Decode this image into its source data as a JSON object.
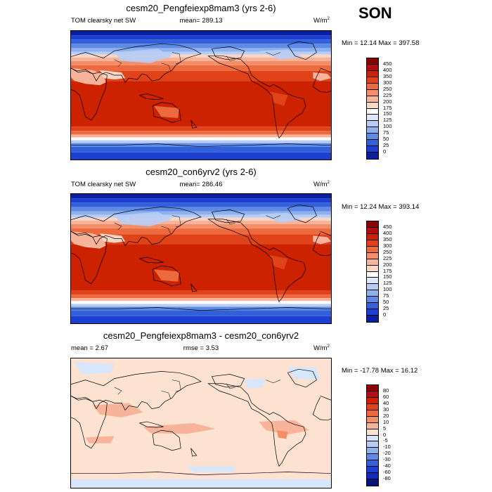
{
  "season": "SON",
  "panels": [
    {
      "title": "cesm20_Pengfeiexp8mam3 (yrs 2-6)",
      "left_label": "TOM clearsky net SW",
      "center_label": "mean= 289.13",
      "unit": "W/m",
      "unit_exp": "2",
      "minmax": "Min =  12.14 Max = 397.58",
      "colorbar": {
        "labels": [
          "450",
          "400",
          "350",
          "300",
          "250",
          "225",
          "200",
          "175",
          "150",
          "125",
          "100",
          "75",
          "50",
          "25",
          "0"
        ],
        "colors": [
          "#8b0000",
          "#b30d0d",
          "#cc2200",
          "#e0431a",
          "#ed6a3f",
          "#f48e69",
          "#f8b49a",
          "#fbd6c6",
          "#ffffff",
          "#dde8fa",
          "#b7cdf5",
          "#8fb0ee",
          "#5f8be4",
          "#3260db",
          "#1c3fd0",
          "#0a1f9e"
        ]
      },
      "stats": {
        "min": 12.14,
        "max": 397.58,
        "mean": 289.13
      },
      "style": "fullfield"
    },
    {
      "title": "cesm20_con6yrv2 (yrs 2-6)",
      "left_label": "TOM clearsky net SW",
      "center_label": "mean= 286.46",
      "unit": "W/m",
      "unit_exp": "2",
      "minmax": "Min =  12.24 Max = 393.14",
      "colorbar": {
        "labels": [
          "450",
          "400",
          "350",
          "300",
          "250",
          "225",
          "200",
          "175",
          "150",
          "125",
          "100",
          "75",
          "50",
          "25",
          "0"
        ],
        "colors": [
          "#8b0000",
          "#b30d0d",
          "#cc2200",
          "#e0431a",
          "#ed6a3f",
          "#f48e69",
          "#f8b49a",
          "#fbd6c6",
          "#ffffff",
          "#dde8fa",
          "#b7cdf5",
          "#8fb0ee",
          "#5f8be4",
          "#3260db",
          "#1c3fd0",
          "#0a1f9e"
        ]
      },
      "stats": {
        "min": 12.24,
        "max": 393.14,
        "mean": 286.46
      },
      "style": "fullfield"
    },
    {
      "title": "cesm20_Pengfeiexp8mam3 - cesm20_con6yrv2",
      "left_label": "mean =   2.67",
      "center_label": "rmse =   3.53",
      "unit": "W/m",
      "unit_exp": "2",
      "minmax": "Min = -17.78 Max =  16.12",
      "colorbar": {
        "labels": [
          "80",
          "60",
          "40",
          "30",
          "20",
          "10",
          "5",
          "0",
          "-5",
          "-10",
          "-20",
          "-30",
          "-40",
          "-60",
          "-80"
        ],
        "colors": [
          "#8b0000",
          "#b30d0d",
          "#cc2200",
          "#e0431a",
          "#ed6a3f",
          "#f48e69",
          "#f8b49a",
          "#fde2d2",
          "#d7e6fb",
          "#b7cdf5",
          "#8fb0ee",
          "#5f8be4",
          "#3260db",
          "#1c3fd0",
          "#0f2ab8",
          "#08137a"
        ]
      },
      "stats": {
        "min": -17.78,
        "max": 16.12,
        "mean": 2.67,
        "rmse": 3.53
      },
      "style": "difference"
    }
  ]
}
